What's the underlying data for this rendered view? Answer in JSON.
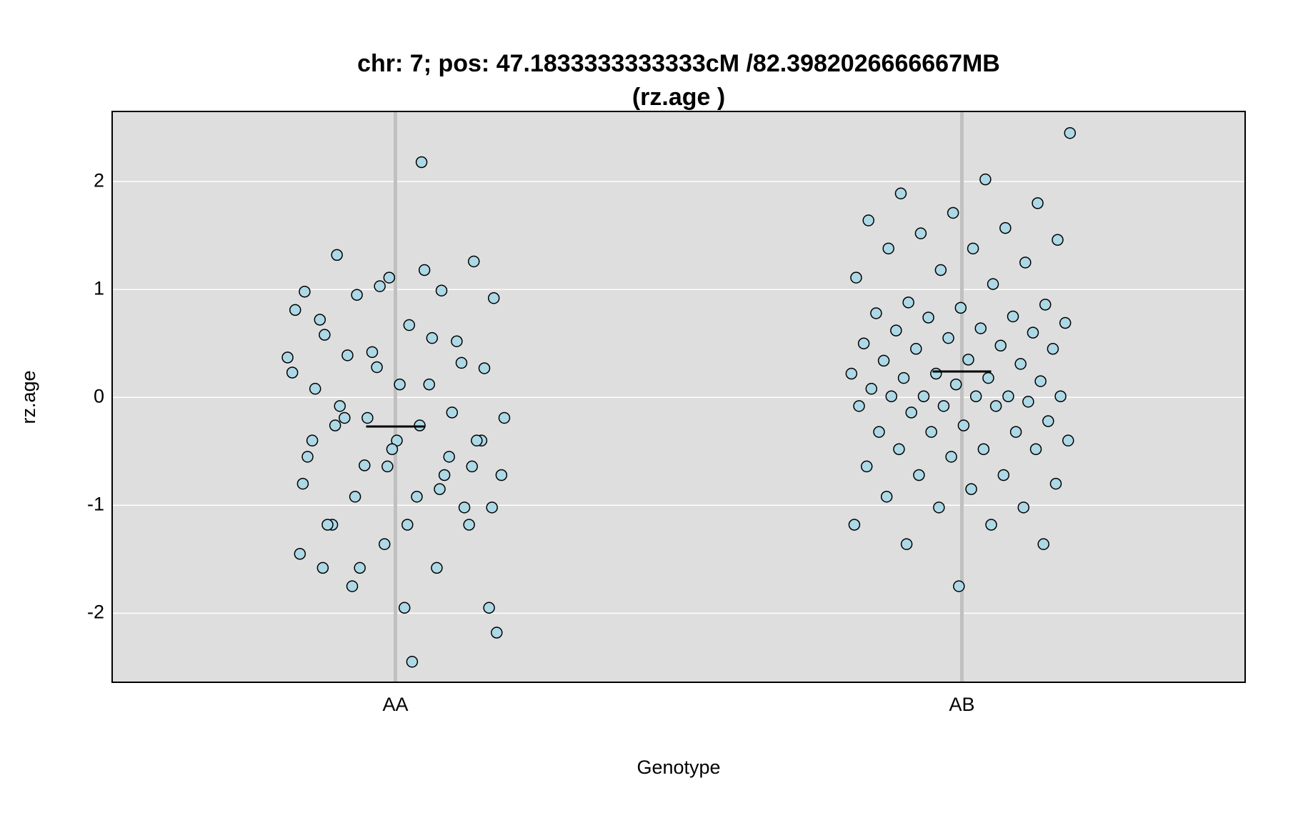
{
  "chart_data": {
    "type": "strip",
    "title": [
      "chr: 7; pos: 47.1833333333333cM /82.3982026666667MB",
      "(rz.age )"
    ],
    "x_label": "Genotype",
    "y_label": "rz.age",
    "categories": [
      "AA",
      "AB"
    ],
    "values": [
      [
        2.18,
        1.32,
        1.26,
        1.11,
        0.98,
        0.99,
        0.95,
        0.92,
        0.67,
        0.58,
        0.32,
        0.28,
        0.23,
        0.12,
        -0.19,
        -0.4,
        -0.4,
        -0.4,
        -0.55,
        -0.63,
        -0.72,
        -0.92,
        -1.18,
        -1.18,
        -1.36,
        -1.45,
        -1.58,
        -1.75,
        -1.95,
        -1.95,
        0.72,
        0.52,
        0.42,
        0.37,
        1.18,
        -0.08,
        -0.4,
        -0.48,
        -0.55,
        -0.72,
        -1.58,
        -2.18,
        -2.45,
        -1.18,
        -1.02,
        1.03,
        0.81,
        0.55,
        0.39,
        0.27,
        0.12,
        0.08,
        -0.14,
        -0.19,
        -0.19,
        -0.26,
        -0.26,
        -0.64,
        -0.64,
        -0.8,
        -0.85,
        -0.92,
        -1.02,
        -1.18,
        -1.58
      ],
      [
        2.45,
        2.02,
        1.89,
        1.8,
        1.71,
        1.64,
        1.57,
        1.52,
        1.46,
        1.38,
        1.38,
        1.25,
        1.18,
        1.11,
        1.05,
        0.88,
        0.86,
        0.83,
        0.78,
        0.75,
        0.74,
        0.69,
        0.64,
        0.62,
        0.6,
        0.55,
        0.5,
        0.48,
        0.45,
        0.45,
        0.35,
        0.34,
        0.31,
        0.22,
        0.22,
        0.18,
        0.18,
        0.15,
        0.12,
        0.08,
        0.01,
        0.01,
        0.01,
        0.01,
        0.01,
        -0.04,
        -0.08,
        -0.08,
        -0.08,
        -0.14,
        -0.22,
        -0.26,
        -0.32,
        -0.32,
        -0.32,
        -0.4,
        -0.48,
        -0.48,
        -0.48,
        -0.55,
        -0.64,
        -0.72,
        -0.72,
        -0.8,
        -0.85,
        -0.92,
        -1.02,
        -1.02,
        -1.18,
        -1.18,
        -1.36,
        -1.36,
        -1.75
      ]
    ],
    "means": [
      -0.27,
      0.24
    ],
    "color": "#add8e6",
    "ylim": [
      -2.64,
      2.65
    ],
    "yticks": [
      -2,
      -1,
      0,
      1,
      2
    ],
    "grid": true
  }
}
